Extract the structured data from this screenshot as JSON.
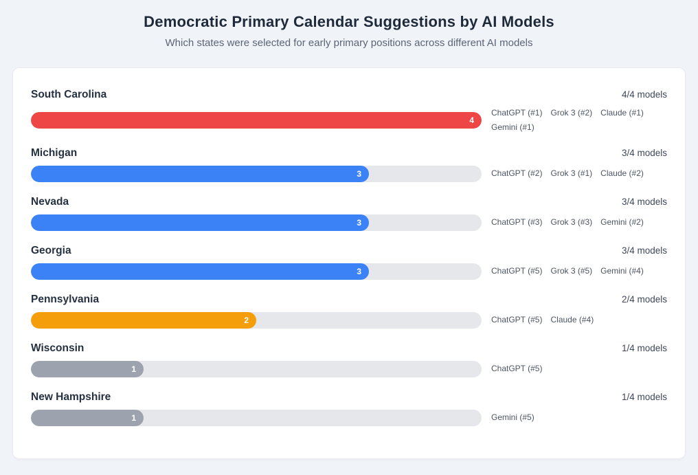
{
  "header": {
    "title": "Democratic Primary Calendar Suggestions by AI Models",
    "subtitle": "Which states were selected for early primary positions across different AI models"
  },
  "colors": {
    "page_background": "#f0f3f8",
    "card_background": "#ffffff",
    "track": "#e5e7eb",
    "bar_count_4": "#ee4545",
    "bar_count_3": "#3b82f6",
    "bar_count_2": "#f59e0b",
    "bar_count_1": "#9ca3af",
    "title_text": "#1e2a3a",
    "subtitle_text": "#5b6575",
    "model_label_text": "#4b5563"
  },
  "chart_data": {
    "type": "bar",
    "orientation": "horizontal",
    "title": "Democratic Primary Calendar Suggestions by AI Models",
    "subtitle": "Which states were selected for early primary positions across different AI models",
    "value_axis_max": 4,
    "grid": false,
    "legend": false,
    "categories": [
      "South Carolina",
      "Michigan",
      "Nevada",
      "Georgia",
      "Pennsylvania",
      "Wisconsin",
      "New Hampshire"
    ],
    "values": [
      4,
      3,
      3,
      3,
      2,
      1,
      1
    ],
    "rows": [
      {
        "state": "South Carolina",
        "count": 4,
        "total": 4,
        "count_label": "4/4 models",
        "value_label": "4",
        "bar_color": "#ee4545",
        "bar_width": "100%",
        "models": [
          "ChatGPT (#1)",
          "Grok 3 (#2)",
          "Claude (#1)",
          "Gemini (#1)"
        ]
      },
      {
        "state": "Michigan",
        "count": 3,
        "total": 4,
        "count_label": "3/4 models",
        "value_label": "3",
        "bar_color": "#3b82f6",
        "bar_width": "75%",
        "models": [
          "ChatGPT (#2)",
          "Grok 3 (#1)",
          "Claude (#2)"
        ]
      },
      {
        "state": "Nevada",
        "count": 3,
        "total": 4,
        "count_label": "3/4 models",
        "value_label": "3",
        "bar_color": "#3b82f6",
        "bar_width": "75%",
        "models": [
          "ChatGPT (#3)",
          "Grok 3 (#3)",
          "Gemini (#2)"
        ]
      },
      {
        "state": "Georgia",
        "count": 3,
        "total": 4,
        "count_label": "3/4 models",
        "value_label": "3",
        "bar_color": "#3b82f6",
        "bar_width": "75%",
        "models": [
          "ChatGPT (#5)",
          "Grok 3 (#5)",
          "Gemini (#4)"
        ]
      },
      {
        "state": "Pennsylvania",
        "count": 2,
        "total": 4,
        "count_label": "2/4 models",
        "value_label": "2",
        "bar_color": "#f59e0b",
        "bar_width": "50%",
        "models": [
          "ChatGPT (#5)",
          "Claude (#4)"
        ]
      },
      {
        "state": "Wisconsin",
        "count": 1,
        "total": 4,
        "count_label": "1/4 models",
        "value_label": "1",
        "bar_color": "#9ca3af",
        "bar_width": "25%",
        "models": [
          "ChatGPT (#5)"
        ]
      },
      {
        "state": "New Hampshire",
        "count": 1,
        "total": 4,
        "count_label": "1/4 models",
        "value_label": "1",
        "bar_color": "#9ca3af",
        "bar_width": "25%",
        "models": [
          "Gemini (#5)"
        ]
      }
    ]
  }
}
